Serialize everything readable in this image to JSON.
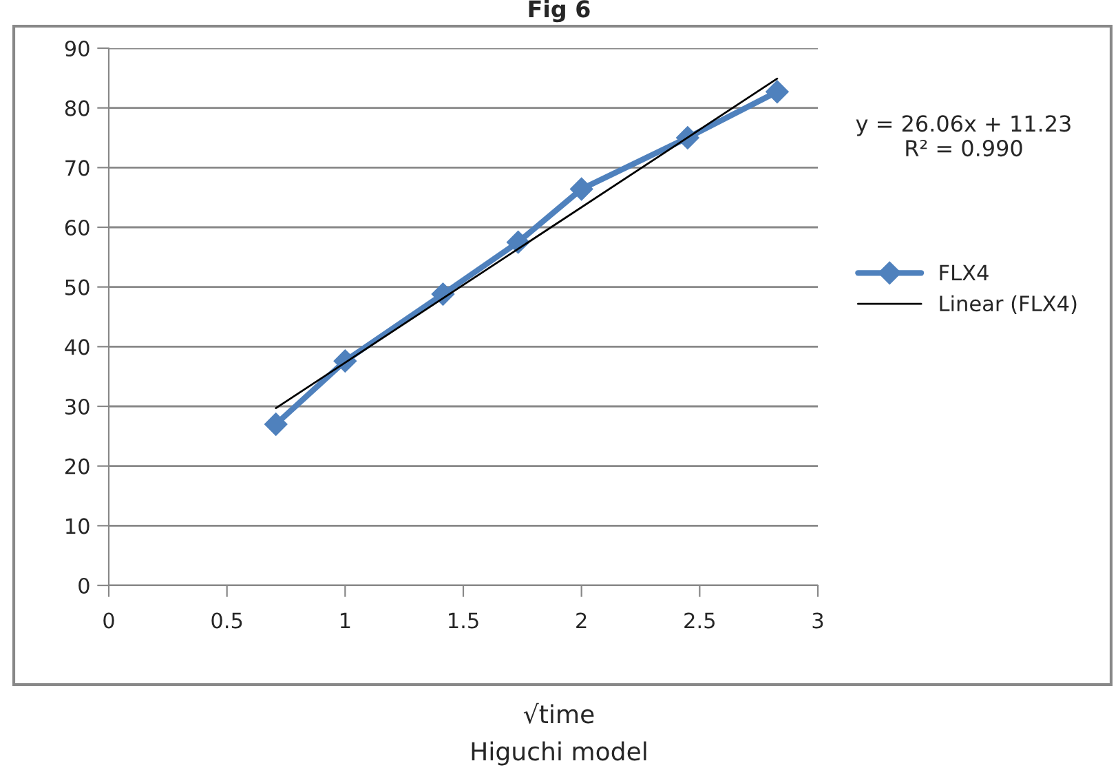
{
  "chart_data": {
    "type": "line",
    "title": "Fig 6",
    "xlabel": "√time",
    "annotations": [
      "y = 26.06x + 11.23\nR² = 0.990",
      "Higuchi model"
    ],
    "series": [
      {
        "name": "FLX4",
        "color": "#4f81bd",
        "marker": "diamond",
        "x": [
          0.707,
          1,
          1.414,
          1.732,
          2,
          2.449,
          2.828
        ],
        "values": [
          27.0,
          37.6,
          48.8,
          57.5,
          66.4,
          75.0,
          82.7
        ]
      },
      {
        "name": "Linear (FLX4)",
        "type": "line",
        "color": "#000000",
        "marker": "none",
        "x": [
          0.707,
          2.828
        ],
        "values": [
          29.7,
          84.9
        ]
      }
    ],
    "xlim": [
      0,
      3
    ],
    "xticks": [
      0,
      0.5,
      1,
      1.5,
      2,
      2.5,
      3
    ],
    "ylim": [
      0,
      90
    ],
    "yticks": [
      0,
      10,
      20,
      30,
      40,
      50,
      60,
      70,
      80,
      90
    ],
    "grid": "y",
    "legend": "right"
  }
}
